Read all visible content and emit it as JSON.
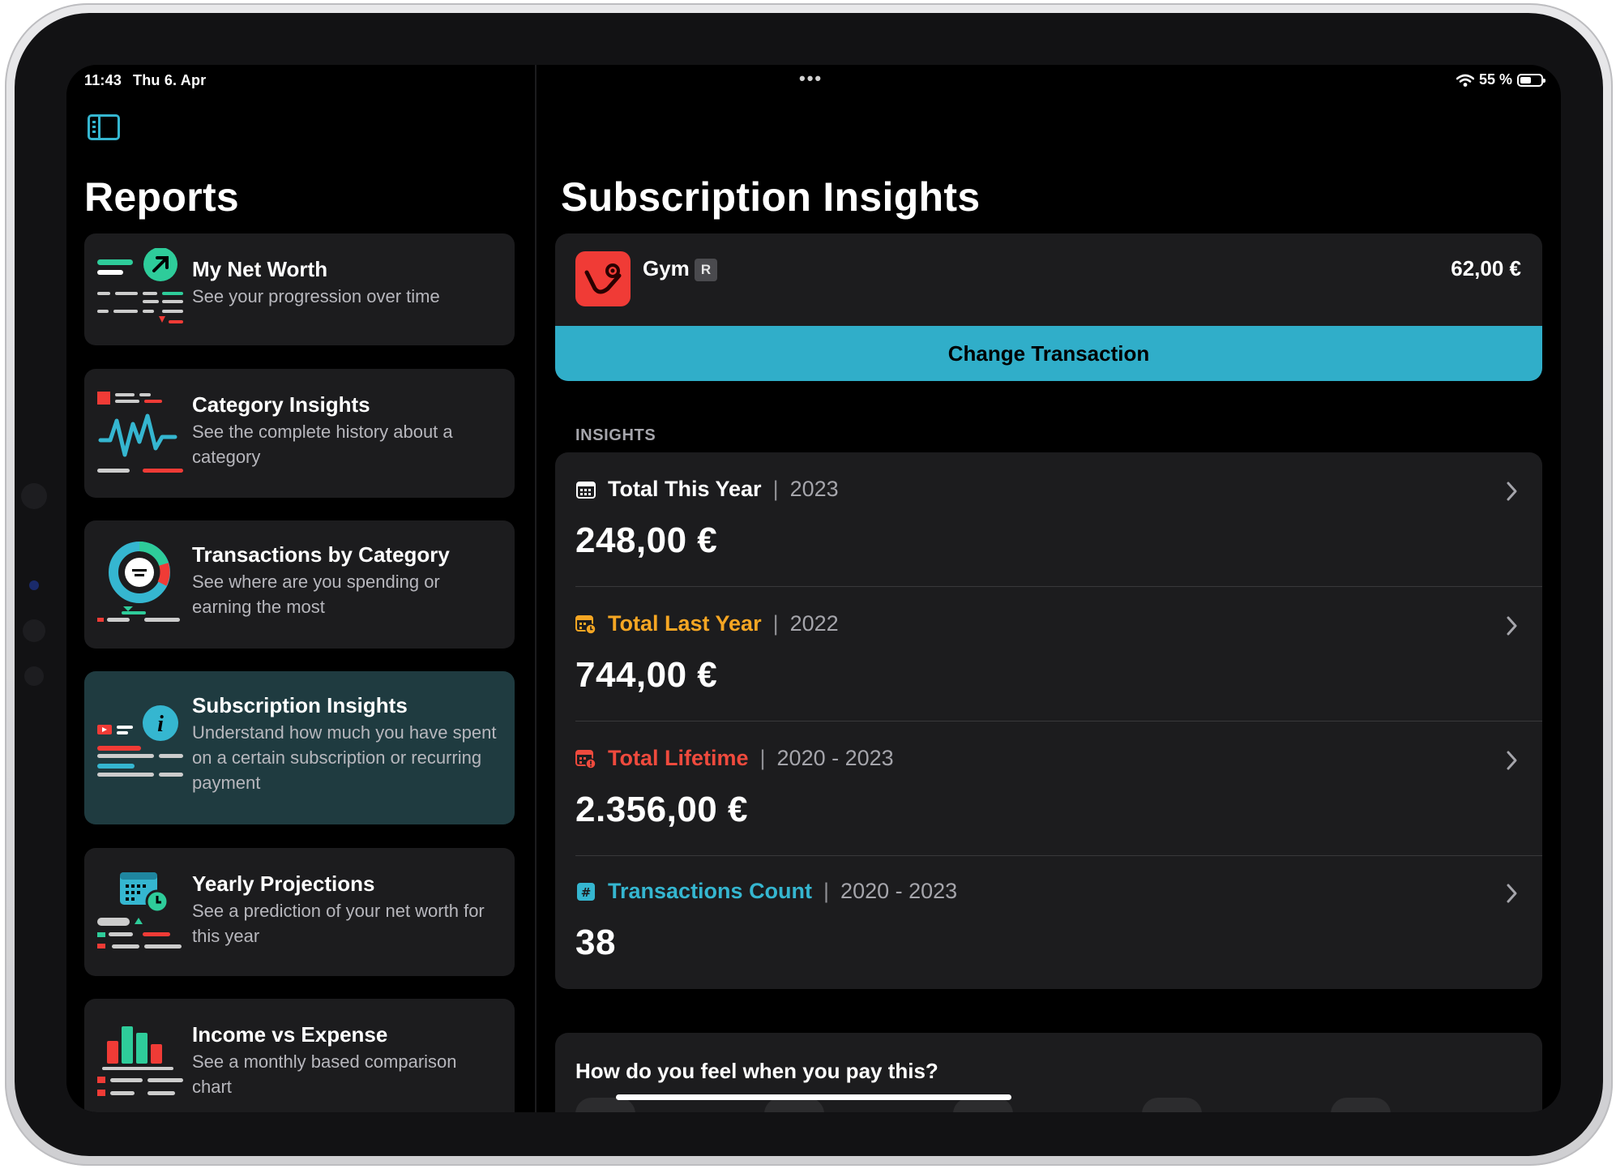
{
  "status_bar": {
    "time": "11:43",
    "date": "Thu 6. Apr",
    "battery": "55 %",
    "battery_level": 0.55
  },
  "sidebar": {
    "title": "Reports",
    "items": [
      {
        "title": "My Net Worth",
        "subtitle": "See your progression over time",
        "icon": "net-worth-icon"
      },
      {
        "title": "Category Insights",
        "subtitle": "See the complete history about a category",
        "icon": "category-insights-icon"
      },
      {
        "title": "Transactions by Category",
        "subtitle": "See where are you spending or earning the most",
        "icon": "donut-chart-icon"
      },
      {
        "title": "Subscription Insights",
        "subtitle": "Understand how much you have spent on a certain subscription or recurring payment",
        "icon": "info-icon",
        "selected": true
      },
      {
        "title": "Yearly Projections",
        "subtitle": "See a prediction of your net worth for this year",
        "icon": "calendar-projection-icon"
      },
      {
        "title": "Income vs Expense",
        "subtitle": "See a monthly based comparison chart",
        "icon": "bar-chart-icon"
      }
    ]
  },
  "main": {
    "title": "Subscription Insights",
    "transaction": {
      "name": "Gym",
      "badge": "R",
      "amount": "62,00 €",
      "change_button": "Change Transaction"
    },
    "section_label": "INSIGHTS",
    "insights": [
      {
        "label": "Total This Year",
        "year": "2023",
        "value": "248,00 €",
        "color": "#ffffff",
        "icon": "calendar-icon"
      },
      {
        "label": "Total Last Year",
        "year": "2022",
        "value": "744,00 €",
        "color": "#f5a623",
        "icon": "calendar-clock-icon"
      },
      {
        "label": "Total Lifetime",
        "year": "2020 - 2023",
        "value": "2.356,00 €",
        "color": "#ef4a3d",
        "icon": "calendar-alert-icon"
      },
      {
        "label": "Transactions Count",
        "year": "2020 - 2023",
        "value": "38",
        "color": "#35b6d0",
        "icon": "number-icon"
      }
    ],
    "feeling_question": "How do you feel when you pay this?"
  },
  "colors": {
    "accent": "#30aec9",
    "red": "#f03b36",
    "green": "#2ecc9a",
    "orange": "#f5a623"
  }
}
